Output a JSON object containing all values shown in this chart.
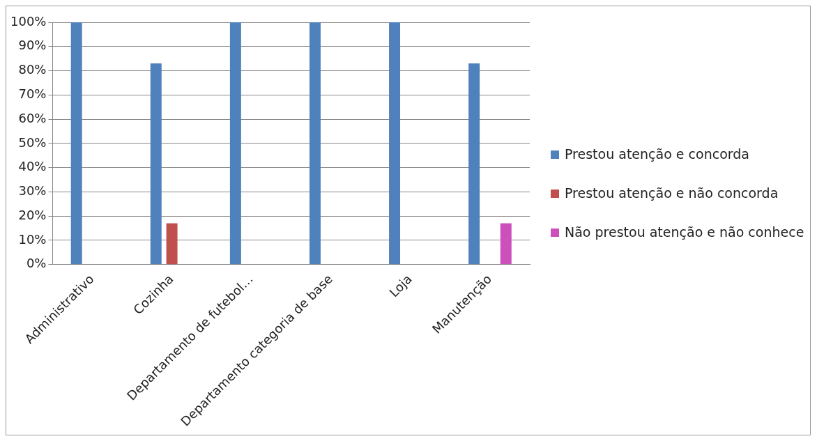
{
  "chart_data": {
    "type": "bar",
    "categories": [
      "Administrativo",
      "Cozinha",
      "Departamento de futebol…",
      "Departamento categoria de base",
      "Loja",
      "Manutenção"
    ],
    "series": [
      {
        "name": "Prestou atenção e concorda",
        "color": "#4f81bd",
        "values": [
          100,
          83,
          100,
          100,
          100,
          83
        ]
      },
      {
        "name": "Prestou atenção e não concorda",
        "color": "#c0504d",
        "values": [
          0,
          17,
          0,
          0,
          0,
          0
        ]
      },
      {
        "name": "Não prestou atenção e não conhece",
        "color": "#cc4fbb",
        "values": [
          0,
          0,
          0,
          0,
          0,
          17
        ]
      }
    ],
    "ylim": [
      0,
      100
    ],
    "yticks": [
      {
        "value": 0,
        "label": "0%"
      },
      {
        "value": 10,
        "label": "10%"
      },
      {
        "value": 20,
        "label": "20%"
      },
      {
        "value": 30,
        "label": "30%"
      },
      {
        "value": 40,
        "label": "40%"
      },
      {
        "value": 50,
        "label": "50%"
      },
      {
        "value": 60,
        "label": "60%"
      },
      {
        "value": 70,
        "label": "70%"
      },
      {
        "value": 80,
        "label": "80%"
      },
      {
        "value": 90,
        "label": "90%"
      },
      {
        "value": 100,
        "label": "100%"
      }
    ],
    "grid": "y",
    "legend": "right"
  }
}
